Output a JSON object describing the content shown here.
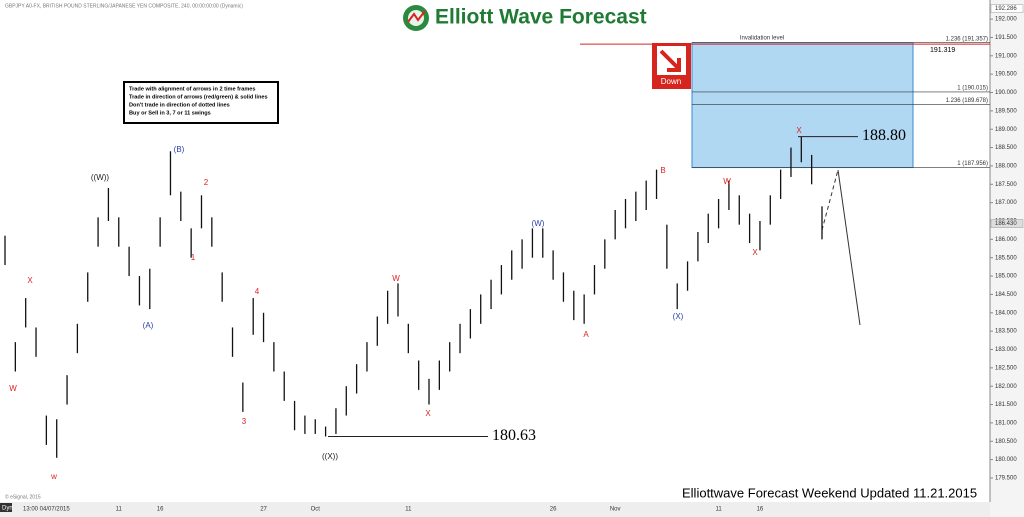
{
  "header": {
    "brand": "Elliott Wave Forecast",
    "symbol": "GBPJPY A0-FX, BRITISH POUND STERLING/JAPANESE YEN COMPOSITE, 240, 00:00:00:00 (Dynamic)"
  },
  "rules": [
    "Trade with alignment of arrows in 2 time frames",
    "Trade in direction of arrows (red/green) & solid lines",
    "Don't trade in direction of dotted lines",
    "Buy or Sell in 3, 7 or 11 swings"
  ],
  "signal": "Down",
  "footer": "Elliottwave Forecast Weekend  Updated 11.21.2015",
  "copyright": "© eSignal, 2015",
  "interval": "Dyn",
  "chart_data": {
    "type": "range-bar",
    "color": "#111",
    "ylim": [
      178.9,
      192.52
    ],
    "yticks": [
      {
        "value": 179.5,
        "label": "179.500"
      },
      {
        "value": 180,
        "label": "180.000"
      },
      {
        "value": 180.5,
        "label": "180.500"
      },
      {
        "value": 181,
        "label": "181.000"
      },
      {
        "value": 181.5,
        "label": "181.500"
      },
      {
        "value": 182,
        "label": "182.000"
      },
      {
        "value": 182.5,
        "label": "182.500"
      },
      {
        "value": 183,
        "label": "183.000"
      },
      {
        "value": 183.5,
        "label": "183.500"
      },
      {
        "value": 184,
        "label": "184.000"
      },
      {
        "value": 184.5,
        "label": "184.500"
      },
      {
        "value": 185,
        "label": "185.000"
      },
      {
        "value": 185.5,
        "label": "185.500"
      },
      {
        "value": 186,
        "label": "186.000"
      },
      {
        "value": 186.5,
        "label": "186.500"
      },
      {
        "value": 187,
        "label": "187.000"
      },
      {
        "value": 187.5,
        "label": "187.500"
      },
      {
        "value": 188,
        "label": "188.000"
      },
      {
        "value": 188.5,
        "label": "188.500"
      },
      {
        "value": 189,
        "label": "189.000"
      },
      {
        "value": 189.5,
        "label": "189.500"
      },
      {
        "value": 190,
        "label": "190.000"
      },
      {
        "value": 190.5,
        "label": "190.500"
      },
      {
        "value": 191,
        "label": "191.000"
      },
      {
        "value": 191.5,
        "label": "191.500"
      },
      {
        "value": 192,
        "label": "192.000"
      }
    ],
    "categories": [
      null,
      null,
      null,
      null,
      "13:00 04/07/2015",
      null,
      null,
      null,
      null,
      null,
      null,
      "11",
      null,
      null,
      null,
      "16",
      null,
      null,
      null,
      null,
      null,
      null,
      null,
      null,
      null,
      "27",
      null,
      null,
      null,
      null,
      "Oct",
      null,
      null,
      null,
      null,
      null,
      null,
      null,
      null,
      "11",
      null,
      null,
      null,
      null,
      null,
      null,
      null,
      null,
      null,
      null,
      null,
      null,
      null,
      "26",
      null,
      null,
      null,
      null,
      null,
      "Nov",
      null,
      null,
      null,
      null,
      null,
      null,
      null,
      null,
      null,
      "11",
      null,
      null,
      null,
      "16",
      null,
      null,
      null,
      null,
      null,
      null
    ],
    "high": [
      186.1,
      183.2,
      184.4,
      183.6,
      181.2,
      181.1,
      182.3,
      183.7,
      185.1,
      186.6,
      187.4,
      186.6,
      185.8,
      185.0,
      185.2,
      186.6,
      188.4,
      187.3,
      186.3,
      187.2,
      186.6,
      185.1,
      183.6,
      182.1,
      184.4,
      184.0,
      183.2,
      182.4,
      181.6,
      181.2,
      181.1,
      180.9,
      181.4,
      182.0,
      182.6,
      183.2,
      183.9,
      184.6,
      184.8,
      183.7,
      182.7,
      182.2,
      182.7,
      183.2,
      183.7,
      184.1,
      184.5,
      184.9,
      185.3,
      185.7,
      186.0,
      186.3,
      186.3,
      185.7,
      185.1,
      184.6,
      184.5,
      185.3,
      186.0,
      186.8,
      187.1,
      187.3,
      187.6,
      187.9,
      186.4,
      184.8,
      185.4,
      186.2,
      186.7,
      187.1,
      187.6,
      187.2,
      186.7,
      186.5,
      187.2,
      187.9,
      188.5,
      188.8,
      188.3,
      186.9
    ],
    "low": [
      185.3,
      182.4,
      183.6,
      182.8,
      180.4,
      180.05,
      181.5,
      182.9,
      184.3,
      185.8,
      186.5,
      185.8,
      185.0,
      184.2,
      184.1,
      185.8,
      187.2,
      186.5,
      185.5,
      186.3,
      185.8,
      184.3,
      182.8,
      181.3,
      183.4,
      183.2,
      182.4,
      181.6,
      180.8,
      180.7,
      180.7,
      180.63,
      180.7,
      181.2,
      181.8,
      182.4,
      183.1,
      183.7,
      183.9,
      182.9,
      181.9,
      181.5,
      181.9,
      182.4,
      182.9,
      183.3,
      183.7,
      184.1,
      184.5,
      184.9,
      185.2,
      185.5,
      185.5,
      184.9,
      184.3,
      183.8,
      183.7,
      184.5,
      185.2,
      186.0,
      186.3,
      186.5,
      186.8,
      187.1,
      185.2,
      184.1,
      184.6,
      185.4,
      185.9,
      186.3,
      186.8,
      186.4,
      185.9,
      185.7,
      186.4,
      187.1,
      187.7,
      188.1,
      187.5,
      186.0
    ],
    "levels": [
      {
        "label": "1.236 (191.357)",
        "value": 191.357
      },
      {
        "label": "1 (190.015)",
        "value": 190.015
      },
      {
        "label": "1.236 (189.678)",
        "value": 189.678
      },
      {
        "label": "1 (187.956)",
        "value": 187.956
      }
    ],
    "invalidation": {
      "label": "Invalidation level",
      "value": 191.319
    },
    "price_marks": [
      {
        "value": 188.8,
        "label": "188.80"
      },
      {
        "value": 180.63,
        "label": "180.63"
      }
    ],
    "price_tags": [
      {
        "value": 192.286,
        "label": "192.286"
      },
      {
        "value": 186.43,
        "label": "186.430"
      }
    ],
    "wave_labels": [
      {
        "text": "X",
        "color": "#d22"
      },
      {
        "text": "W",
        "color": "#d22"
      },
      {
        "text": "w",
        "color": "#d22"
      },
      {
        "text": "((W))",
        "color": "#222"
      },
      {
        "text": "(A)",
        "color": "#2a3fa8"
      },
      {
        "text": "(B)",
        "color": "#2a3fa8"
      },
      {
        "text": "2",
        "color": "#d22"
      },
      {
        "text": "1",
        "color": "#d22"
      },
      {
        "text": "4",
        "color": "#d22"
      },
      {
        "text": "3",
        "color": "#d22"
      },
      {
        "text": "((X))",
        "color": "#222"
      },
      {
        "text": "W",
        "color": "#d22"
      },
      {
        "text": "X",
        "color": "#d22"
      },
      {
        "text": "(W)",
        "color": "#2a3fa8"
      },
      {
        "text": "A",
        "color": "#d22"
      },
      {
        "text": "B",
        "color": "#d22"
      },
      {
        "text": "(X)",
        "color": "#2a3fa8"
      },
      {
        "text": "W",
        "color": "#d22"
      },
      {
        "text": "X",
        "color": "#d22"
      },
      {
        "text": "X",
        "color": "#d22"
      }
    ]
  }
}
